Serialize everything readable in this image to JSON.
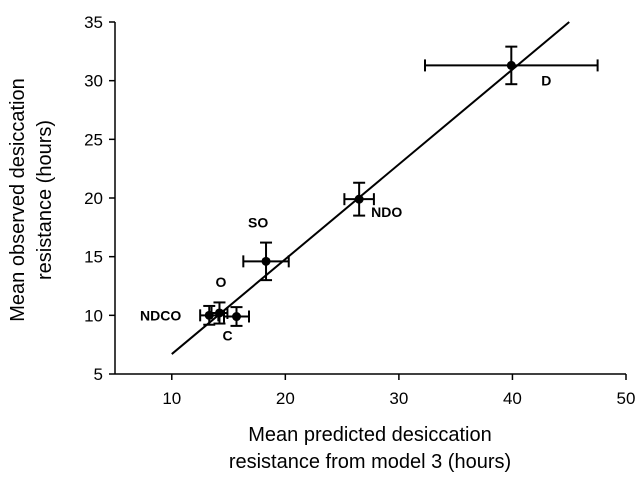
{
  "chart_data": {
    "type": "scatter",
    "xlabel_lines": [
      "Mean predicted desiccation",
      "resistance from model 3 (hours)"
    ],
    "ylabel_lines": [
      "Mean observed desiccation",
      "resistance (hours)"
    ],
    "xlim": [
      5,
      50
    ],
    "ylim": [
      5,
      35
    ],
    "x_ticks": [
      10,
      20,
      30,
      40,
      50
    ],
    "y_ticks": [
      5,
      10,
      15,
      20,
      25,
      30,
      35
    ],
    "grid": false,
    "legend": "none",
    "points": [
      {
        "label": "D",
        "x": 39.9,
        "y": 31.3,
        "x_err": 7.6,
        "y_err": 1.6
      },
      {
        "label": "NDO",
        "x": 26.5,
        "y": 19.9,
        "x_err": 1.3,
        "y_err": 1.4
      },
      {
        "label": "SO",
        "x": 18.3,
        "y": 14.6,
        "x_err": 2.0,
        "y_err": 1.6
      },
      {
        "label": "O",
        "x": 14.2,
        "y": 10.2,
        "x_err": 0.7,
        "y_err": 0.9
      },
      {
        "label": "NDCO",
        "x": 13.3,
        "y": 10.0,
        "x_err": 0.8,
        "y_err": 0.8
      },
      {
        "label": "C",
        "x": 15.7,
        "y": 9.9,
        "x_err": 1.1,
        "y_err": 0.8
      }
    ],
    "fit_line": {
      "x": [
        10,
        45
      ],
      "y": [
        6.7,
        35
      ]
    }
  }
}
